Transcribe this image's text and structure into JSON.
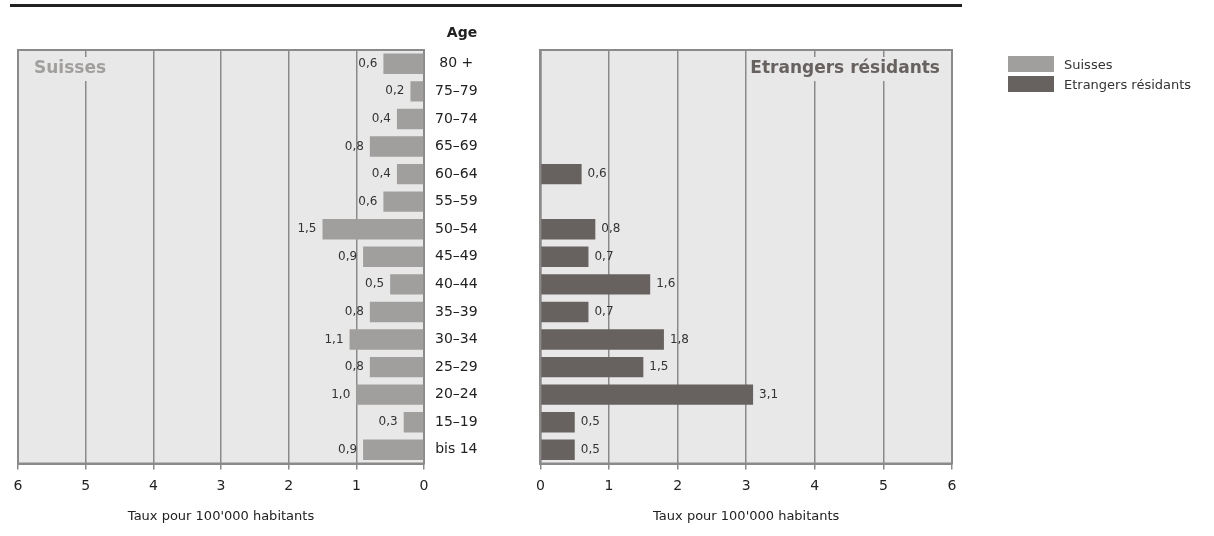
{
  "chart_data": [
    {
      "type": "bar",
      "orientation": "horizontal",
      "ylabel": "Age",
      "xlabel": "Taux pour 100'000 habitants",
      "categories": [
        "80 +",
        "75–79",
        "70–74",
        "65–69",
        "60–64",
        "55–59",
        "50–54",
        "45–49",
        "40–44",
        "35–39",
        "30–34",
        "25–29",
        "20–24",
        "15–19",
        "bis 14"
      ],
      "series": [
        {
          "name": "Suisses",
          "color": "#a09f9d",
          "values": [
            0.6,
            0.2,
            0.4,
            0.8,
            0.4,
            0.6,
            1.5,
            0.9,
            0.5,
            0.8,
            1.1,
            0.8,
            1.0,
            0.3,
            0.9
          ],
          "value_labels": [
            "0,6",
            "0,2",
            "0,4",
            "0,8",
            "0,4",
            "0,6",
            "1,5",
            "0,9",
            "0,5",
            "0,8",
            "1,1",
            "0,8",
            "1,0",
            "0,3",
            "0,9"
          ]
        }
      ],
      "xlim": [
        6,
        0
      ],
      "xticks": [
        6,
        5,
        4,
        3,
        2,
        1,
        0
      ],
      "grid": "x",
      "legend": "right"
    },
    {
      "type": "bar",
      "orientation": "horizontal",
      "xlabel": "Taux pour 100'000 habitants",
      "categories": [
        null,
        null,
        null,
        null,
        null,
        null,
        null,
        null,
        null,
        null,
        null,
        null,
        null,
        null,
        null
      ],
      "series": [
        {
          "name": "Etrangers résidants",
          "color": "#67625f",
          "values": [
            null,
            null,
            null,
            null,
            0.6,
            null,
            0.8,
            0.7,
            1.6,
            0.7,
            1.8,
            1.5,
            3.1,
            0.5,
            0.5
          ],
          "value_labels": [
            null,
            null,
            null,
            null,
            "0,6",
            null,
            "0,8",
            "0,7",
            "1,6",
            "0,7",
            "1,8",
            "1,5",
            "3,1",
            "0,5",
            "0,5"
          ]
        }
      ],
      "xlim": [
        0,
        6
      ],
      "xticks": [
        0,
        1,
        2,
        3,
        4,
        5,
        6
      ],
      "grid": "x",
      "legend": "right",
      "tick_labels": "x"
    }
  ]
}
